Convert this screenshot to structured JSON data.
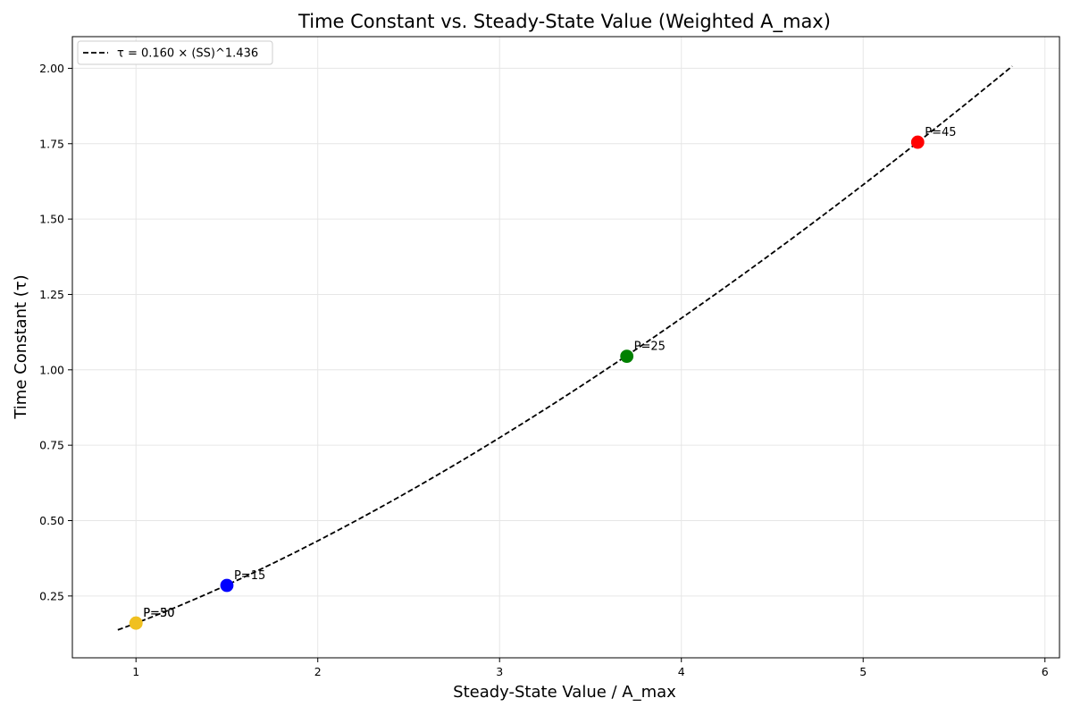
{
  "chart_data": {
    "type": "scatter",
    "title": "Time Constant vs. Steady-State Value (Weighted A_max)",
    "xlabel": "Steady-State Value / A_max",
    "ylabel": "Time Constant (τ)",
    "xlim": [
      0.65,
      6.08
    ],
    "ylim": [
      0.045,
      2.105
    ],
    "xticks": [
      1,
      2,
      3,
      4,
      5,
      6
    ],
    "xtick_labels": [
      "1",
      "2",
      "3",
      "4",
      "5",
      "6"
    ],
    "yticks": [
      0.25,
      0.5,
      0.75,
      1.0,
      1.25,
      1.5,
      1.75,
      2.0
    ],
    "ytick_labels": [
      "0.25",
      "0.50",
      "0.75",
      "1.00",
      "1.25",
      "1.50",
      "1.75",
      "2.00"
    ],
    "grid": true,
    "legend_position": "top-left",
    "fit": {
      "label": "τ = 0.160 × (SS)^1.436",
      "a": 0.16,
      "b": 1.436,
      "x_range": [
        0.9,
        5.82
      ],
      "style": "dashed",
      "color": "#000000"
    },
    "points": [
      {
        "label": "P=30",
        "x": 1.0,
        "y": 0.16,
        "color": "#f0c020"
      },
      {
        "label": "P=50",
        "x": 1.0,
        "y": 0.16,
        "color": "#f0c020"
      },
      {
        "label": "P=15",
        "x": 1.5,
        "y": 0.285,
        "color": "#0000ff"
      },
      {
        "label": "P=25",
        "x": 3.7,
        "y": 1.045,
        "color": "#008000"
      },
      {
        "label": "P=45",
        "x": 5.3,
        "y": 1.755,
        "color": "#ff0000"
      }
    ]
  }
}
